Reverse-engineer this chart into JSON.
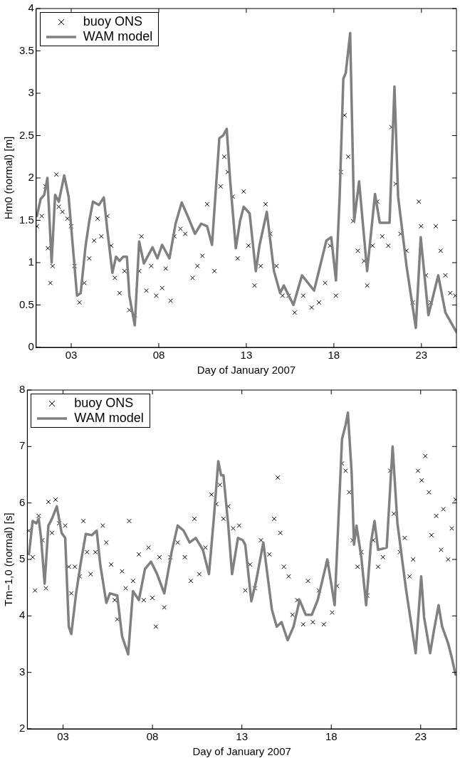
{
  "chart_data": [
    {
      "type": "scatter",
      "xlabel": "Day of January 2007",
      "ylabel": "Hm0 (normal) [m]",
      "xlim": [
        1,
        25
      ],
      "ylim": [
        0,
        4
      ],
      "xticks": [
        {
          "value": 3,
          "label": "03"
        },
        {
          "value": 8,
          "label": "08"
        },
        {
          "value": 13,
          "label": "13"
        },
        {
          "value": 18,
          "label": "18"
        },
        {
          "value": 23,
          "label": "23"
        }
      ],
      "yticks": [
        0,
        0.5,
        1,
        1.5,
        2,
        2.5,
        3,
        3.5,
        4
      ],
      "legend": "top left",
      "series": [
        {
          "name": "buoy ONS",
          "marker": "cross",
          "color": "#000000",
          "x": [
            1.04,
            1.32,
            1.53,
            1.67,
            1.81,
            1.94,
            2.15,
            2.29,
            2.5,
            2.78,
            2.99,
            3.19,
            3.47,
            3.75,
            4.03,
            4.31,
            4.51,
            4.72,
            5.07,
            5.28,
            5.49,
            5.76,
            6.04,
            6.32,
            6.63,
            6.88,
            7.01,
            7.29,
            7.57,
            7.85,
            8.19,
            8.4,
            8.68,
            8.89,
            9.24,
            9.51,
            9.93,
            10.21,
            10.49,
            10.76,
            11.18,
            11.53,
            11.74,
            11.94,
            12.22,
            12.5,
            12.85,
            13.12,
            13.47,
            13.82,
            14.1,
            14.37,
            14.72,
            15.07,
            15.42,
            15.76,
            16.25,
            16.73,
            17.15,
            17.5,
            17.78,
            18.12,
            18.4,
            18.61,
            18.82,
            19.1,
            19.37,
            19.72,
            19.9,
            20.21,
            20.48,
            20.76,
            21.11,
            21.29,
            21.53,
            21.8,
            22.15,
            22.5,
            22.85,
            22.98,
            23.26,
            23.54,
            23.82,
            24.1,
            24.37,
            24.65,
            24.93
          ],
          "values": [
            1.43,
            1.55,
            1.9,
            1.17,
            0.76,
            0.96,
            2.04,
            1.66,
            1.6,
            1.52,
            1.43,
            0.96,
            0.53,
            0.76,
            1.05,
            1.26,
            1.52,
            1.31,
            1.55,
            1.2,
            0.82,
            0.64,
            0.9,
            0.44,
            0.38,
            0.9,
            1.31,
            0.67,
            0.96,
            0.61,
            0.7,
            0.93,
            0.55,
            1.31,
            1.4,
            1.34,
            0.82,
            0.96,
            1.08,
            1.69,
            0.9,
            1.9,
            2.25,
            2.07,
            1.78,
            1.05,
            1.84,
            1.2,
            0.73,
            0.96,
            1.69,
            1.34,
            0.96,
            0.61,
            0.61,
            0.41,
            0.61,
            0.47,
            0.53,
            0.76,
            1.2,
            0.61,
            2.07,
            2.74,
            2.25,
            1.49,
            1.14,
            1.02,
            0.73,
            1.2,
            1.72,
            1.31,
            1.2,
            2.6,
            1.93,
            1.34,
            1.14,
            0.53,
            1.72,
            1.43,
            0.85,
            0.53,
            1.43,
            1.14,
            0.85,
            0.64,
            0.61
          ]
        },
        {
          "name": "WAM model",
          "type": "line",
          "marker": "none",
          "line_style": "solid",
          "color": "#808080",
          "x": [
            1.04,
            1.25,
            1.46,
            1.64,
            1.88,
            2.08,
            2.29,
            2.6,
            2.85,
            3.33,
            3.54,
            3.82,
            4.03,
            4.24,
            4.58,
            4.86,
            5.07,
            5.35,
            5.56,
            5.76,
            5.97,
            6.18,
            6.32,
            6.63,
            6.88,
            7.15,
            7.64,
            7.92,
            8.19,
            8.61,
            8.96,
            9.31,
            9.65,
            10.07,
            10.42,
            10.76,
            11.04,
            11.46,
            11.67,
            11.88,
            12.08,
            12.4,
            12.64,
            12.85,
            13.19,
            13.54,
            13.75,
            14.17,
            14.58,
            14.93,
            15.14,
            15.69,
            16.18,
            16.87,
            17.57,
            17.85,
            18.12,
            18.33,
            18.54,
            18.68,
            18.93,
            19.16,
            19.44,
            19.9,
            20.35,
            20.62,
            21.18,
            21.46,
            21.67,
            22.15,
            22.68,
            22.96,
            23.4,
            23.96,
            24.37,
            25.0
          ],
          "values": [
            1.55,
            1.75,
            1.8,
            2.0,
            1.0,
            1.8,
            1.72,
            2.03,
            1.78,
            0.61,
            0.64,
            1.2,
            1.49,
            1.72,
            1.68,
            1.77,
            1.37,
            0.88,
            1.07,
            1.02,
            1.07,
            1.07,
            0.61,
            0.26,
            1.25,
            0.99,
            1.18,
            1.05,
            1.21,
            1.05,
            1.46,
            1.71,
            1.55,
            1.34,
            1.46,
            1.43,
            1.21,
            2.47,
            2.5,
            2.58,
            1.96,
            1.17,
            1.49,
            1.66,
            1.58,
            0.9,
            1.2,
            1.6,
            0.9,
            0.64,
            0.73,
            0.5,
            0.85,
            0.67,
            1.26,
            1.3,
            0.79,
            1.78,
            3.17,
            3.24,
            3.71,
            1.49,
            1.96,
            0.9,
            1.81,
            1.47,
            1.47,
            3.08,
            1.78,
            0.96,
            0.23,
            1.3,
            0.38,
            0.85,
            0.41,
            0.18
          ]
        }
      ]
    },
    {
      "type": "scatter",
      "xlabel": "Day of January 2007",
      "ylabel": "Tm−1,0 (normal) [s]",
      "xlim": [
        1,
        25
      ],
      "ylim": [
        2,
        8
      ],
      "xticks": [
        {
          "value": 3,
          "label": "03"
        },
        {
          "value": 8,
          "label": "08"
        },
        {
          "value": 13,
          "label": "13"
        },
        {
          "value": 18,
          "label": "18"
        },
        {
          "value": 23,
          "label": "23"
        }
      ],
      "yticks": [
        2,
        3,
        4,
        5,
        6,
        7,
        8
      ],
      "legend": "top left",
      "series": [
        {
          "name": "buoy ONS",
          "marker": "cross",
          "color": "#000000",
          "x": [
            1.09,
            1.3,
            1.43,
            1.64,
            1.84,
            2.04,
            2.18,
            2.38,
            2.58,
            2.78,
            3.12,
            3.32,
            3.46,
            3.66,
            3.93,
            4.14,
            4.34,
            4.54,
            4.81,
            5.22,
            5.42,
            5.69,
            5.89,
            6.03,
            6.3,
            6.5,
            6.7,
            6.91,
            7.24,
            7.51,
            7.78,
            7.99,
            8.19,
            8.39,
            8.66,
            9.0,
            9.41,
            9.81,
            10.15,
            10.35,
            10.62,
            10.96,
            11.3,
            11.57,
            11.77,
            11.97,
            12.24,
            12.51,
            12.85,
            13.19,
            13.46,
            13.73,
            14.07,
            14.54,
            14.81,
            15.01,
            15.15,
            15.35,
            15.62,
            15.83,
            16.1,
            16.43,
            16.7,
            16.97,
            17.31,
            17.58,
            17.78,
            18.05,
            18.32,
            18.6,
            18.8,
            19.0,
            19.2,
            19.47,
            19.68,
            20.01,
            20.35,
            20.62,
            20.89,
            21.3,
            21.5,
            21.84,
            22.11,
            22.38,
            22.58,
            22.85,
            23.06,
            23.26,
            23.46,
            23.6,
            23.87,
            24.14,
            24.27,
            24.54,
            24.74,
            24.95
          ],
          "values": [
            5.51,
            5.04,
            4.45,
            5.77,
            5.34,
            4.49,
            6.02,
            5.47,
            6.06,
            5.64,
            5.6,
            4.87,
            4.4,
            4.87,
            4.7,
            5.68,
            5.13,
            4.74,
            5.13,
            5.6,
            5.3,
            4.91,
            4.28,
            3.94,
            4.79,
            4.49,
            5.68,
            4.62,
            5.09,
            4.28,
            5.21,
            4.32,
            3.81,
            5.04,
            4.15,
            5.04,
            5.3,
            5.04,
            4.62,
            5.72,
            4.74,
            5.21,
            6.15,
            5.98,
            6.32,
            5.72,
            5.94,
            5.55,
            5.6,
            4.45,
            4.91,
            4.49,
            5.34,
            5.09,
            5.72,
            6.45,
            5.47,
            4.87,
            4.7,
            4.02,
            4.28,
            3.85,
            4.62,
            3.89,
            4.45,
            3.85,
            4.91,
            4.06,
            4.53,
            6.7,
            6.57,
            6.19,
            5.34,
            4.87,
            5.13,
            4.36,
            5.34,
            4.87,
            5.04,
            6.57,
            5.81,
            5.13,
            5.38,
            4.7,
            5.0,
            6.57,
            6.4,
            6.83,
            6.19,
            5.43,
            5.77,
            5.17,
            5.89,
            5.0,
            5.55,
            6.06
          ]
        },
        {
          "name": "WAM model",
          "type": "line",
          "marker": "none",
          "line_style": "solid",
          "color": "#808080",
          "x": [
            1.09,
            1.3,
            1.5,
            1.64,
            1.77,
            1.97,
            2.18,
            2.38,
            2.65,
            2.92,
            3.12,
            3.32,
            3.46,
            3.73,
            4.0,
            4.27,
            4.61,
            4.88,
            5.08,
            5.42,
            5.62,
            6.03,
            6.3,
            6.64,
            6.91,
            7.24,
            7.58,
            7.92,
            8.26,
            8.66,
            9.07,
            9.41,
            9.74,
            10.08,
            10.42,
            10.82,
            11.16,
            11.43,
            11.68,
            11.84,
            11.97,
            12.24,
            12.45,
            12.78,
            13.05,
            13.19,
            13.53,
            13.8,
            14.2,
            14.68,
            14.95,
            15.22,
            15.56,
            15.89,
            16.23,
            16.57,
            16.91,
            17.24,
            17.78,
            18.19,
            18.6,
            18.8,
            18.93,
            19.14,
            19.27,
            19.41,
            19.68,
            19.95,
            20.22,
            20.42,
            20.62,
            21.1,
            21.43,
            21.7,
            22.18,
            22.72,
            23.03,
            23.19,
            23.53,
            23.73,
            24.0,
            24.2,
            24.54,
            24.74,
            24.95
          ],
          "values": [
            5.09,
            5.68,
            5.64,
            5.72,
            5.38,
            4.57,
            5.6,
            5.72,
            5.94,
            5.47,
            5.38,
            3.81,
            3.68,
            4.4,
            4.96,
            5.45,
            5.43,
            5.51,
            4.91,
            4.23,
            4.4,
            4.36,
            3.64,
            3.32,
            4.44,
            4.28,
            4.83,
            4.96,
            4.74,
            4.4,
            5.13,
            5.6,
            5.51,
            5.3,
            5.38,
            5.17,
            4.74,
            5.72,
            6.74,
            6.49,
            6.49,
            5.6,
            4.74,
            5.38,
            5.34,
            5.26,
            4.26,
            4.62,
            5.3,
            4.11,
            3.81,
            3.89,
            3.57,
            3.81,
            4.28,
            4.02,
            4.02,
            4.28,
            5.0,
            4.19,
            7.13,
            7.38,
            7.6,
            6.53,
            5.26,
            5.6,
            5.04,
            4.19,
            5.3,
            5.68,
            5.17,
            5.21,
            7.0,
            5.64,
            4.47,
            3.34,
            4.7,
            3.98,
            3.34,
            3.72,
            4.19,
            3.81,
            3.51,
            3.26,
            2.96
          ]
        }
      ]
    }
  ]
}
